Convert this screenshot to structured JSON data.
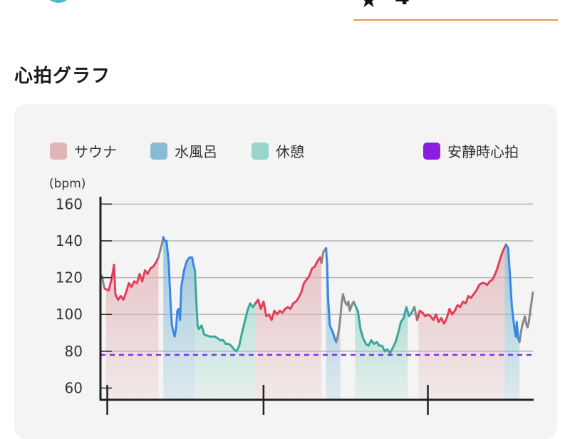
{
  "header": {
    "tab_icon": "sauna-icon",
    "star_icon": "★",
    "count": "4"
  },
  "section_title": "心拍グラフ",
  "legend": {
    "sauna": "サウナ",
    "cold_bath": "水風呂",
    "rest": "休憩",
    "resting_hr": "安静時心拍"
  },
  "colors": {
    "sauna_swatch": "#e3b4b6",
    "cold_swatch": "#86bcd6",
    "rest_swatch": "#98d6ca",
    "resting_swatch": "#8a1ee0",
    "sauna_line": "#e0405a",
    "cold_line": "#3a86e8",
    "rest_line": "#3aa79a",
    "other_line": "#888888",
    "resting_line": "#8a2be2",
    "accent": "#e8964a"
  },
  "chart_data": {
    "type": "line",
    "y_unit": "(bpm)",
    "ylim": [
      54,
      164
    ],
    "y_ticks": [
      60,
      80,
      100,
      120,
      140,
      160
    ],
    "grid": true,
    "resting_hr": 78,
    "series": [
      {
        "kind": "other",
        "values": [
          [
            0,
            121
          ],
          [
            0.8,
            115
          ],
          [
            1.1,
            114
          ]
        ]
      },
      {
        "kind": "sauna",
        "values": [
          [
            1.1,
            114
          ],
          [
            2.5,
            113
          ],
          [
            3.7,
            120
          ],
          [
            4.5,
            127
          ],
          [
            5,
            111
          ],
          [
            6,
            108
          ],
          [
            7,
            110
          ],
          [
            8,
            108
          ],
          [
            9,
            112
          ],
          [
            10,
            117
          ],
          [
            11,
            115
          ],
          [
            12,
            118
          ],
          [
            13,
            117
          ],
          [
            14,
            122
          ],
          [
            15,
            118
          ],
          [
            16,
            124
          ],
          [
            17,
            122
          ],
          [
            18,
            125
          ],
          [
            19,
            126
          ],
          [
            20,
            128
          ],
          [
            21,
            131
          ]
        ]
      },
      {
        "kind": "other",
        "values": [
          [
            21,
            131
          ],
          [
            22.4,
            139
          ],
          [
            22.8,
            142
          ]
        ]
      },
      {
        "kind": "cold",
        "values": [
          [
            22.8,
            142
          ],
          [
            23.3,
            140
          ],
          [
            24,
            140
          ],
          [
            24.8,
            128
          ],
          [
            25.5,
            106
          ],
          [
            26,
            94
          ],
          [
            26.5,
            91
          ],
          [
            27,
            88
          ],
          [
            27.5,
            92
          ],
          [
            28,
            102
          ],
          [
            28.5,
            103
          ],
          [
            29,
            97
          ],
          [
            29.5,
            115
          ],
          [
            30.5,
            124
          ],
          [
            31.5,
            129
          ],
          [
            32.5,
            131
          ],
          [
            33.5,
            131
          ],
          [
            34,
            127
          ],
          [
            34.5,
            124
          ]
        ]
      },
      {
        "kind": "rest",
        "values": [
          [
            34.5,
            124
          ],
          [
            35.5,
            94
          ],
          [
            36,
            92
          ],
          [
            37,
            94
          ],
          [
            38,
            89
          ],
          [
            40,
            88
          ],
          [
            42,
            88
          ],
          [
            44,
            86
          ],
          [
            45,
            86
          ],
          [
            46,
            84
          ],
          [
            47,
            84
          ],
          [
            48,
            83
          ],
          [
            49,
            81
          ],
          [
            50,
            80
          ],
          [
            51,
            83
          ],
          [
            52,
            90
          ],
          [
            53,
            96
          ],
          [
            54,
            102
          ],
          [
            55,
            106
          ],
          [
            56,
            104
          ],
          [
            57,
            106
          ]
        ]
      },
      {
        "kind": "sauna",
        "values": [
          [
            57,
            106
          ],
          [
            58,
            108
          ],
          [
            59,
            103
          ],
          [
            60,
            107
          ],
          [
            61,
            99
          ],
          [
            62,
            100
          ],
          [
            63,
            97
          ],
          [
            64,
            102
          ],
          [
            65,
            100
          ],
          [
            66,
            102
          ],
          [
            67,
            101
          ],
          [
            68,
            103
          ],
          [
            69,
            104
          ],
          [
            70,
            103
          ],
          [
            71,
            106
          ],
          [
            72,
            107
          ],
          [
            73,
            109
          ],
          [
            74,
            112
          ],
          [
            75,
            117
          ],
          [
            76,
            119
          ],
          [
            77,
            121
          ],
          [
            78,
            125
          ],
          [
            79,
            126
          ],
          [
            80,
            129
          ],
          [
            81,
            131
          ],
          [
            81.5,
            128
          ]
        ]
      },
      {
        "kind": "other",
        "values": [
          [
            81.5,
            128
          ],
          [
            82.2,
            134
          ],
          [
            83.2,
            136
          ]
        ]
      },
      {
        "kind": "cold",
        "values": [
          [
            83.2,
            136
          ],
          [
            83.6,
            127
          ],
          [
            84,
            108
          ],
          [
            84.6,
            94
          ],
          [
            85.2,
            92
          ],
          [
            85.8,
            90
          ],
          [
            86.4,
            87
          ],
          [
            87,
            85
          ]
        ]
      },
      {
        "kind": "other",
        "values": [
          [
            87,
            85
          ],
          [
            87.5,
            88
          ],
          [
            88,
            92
          ],
          [
            88.5,
            98
          ],
          [
            89,
            106
          ],
          [
            89.5,
            111
          ],
          [
            90,
            108
          ],
          [
            90.5,
            106
          ],
          [
            91,
            105
          ],
          [
            91.5,
            107
          ],
          [
            92,
            102
          ],
          [
            92.5,
            104
          ],
          [
            93,
            106
          ],
          [
            93.5,
            107
          ],
          [
            94,
            105
          ]
        ]
      },
      {
        "kind": "rest",
        "values": [
          [
            94,
            105
          ],
          [
            95,
            102
          ],
          [
            96,
            92
          ],
          [
            97,
            87
          ],
          [
            98,
            84
          ],
          [
            99,
            83
          ],
          [
            100,
            86
          ],
          [
            101,
            84
          ],
          [
            102,
            85
          ],
          [
            103,
            83
          ],
          [
            104,
            83
          ],
          [
            105,
            80
          ],
          [
            106,
            81
          ],
          [
            107,
            79
          ],
          [
            108,
            82
          ],
          [
            109,
            85
          ],
          [
            110,
            90
          ],
          [
            111,
            96
          ],
          [
            112,
            98
          ],
          [
            113,
            104
          ],
          [
            114,
            99
          ],
          [
            115,
            101
          ],
          [
            116,
            104
          ]
        ]
      },
      {
        "kind": "other",
        "values": [
          [
            116,
            104
          ],
          [
            117,
            97
          ]
        ]
      },
      {
        "kind": "sauna",
        "values": [
          [
            117,
            97
          ],
          [
            118,
            102
          ],
          [
            119,
            101
          ],
          [
            120,
            99
          ],
          [
            121,
            100
          ],
          [
            122,
            99
          ],
          [
            123,
            97
          ],
          [
            124,
            100
          ],
          [
            125,
            96
          ],
          [
            126,
            98
          ],
          [
            127,
            95
          ],
          [
            128,
            98
          ],
          [
            129,
            103
          ],
          [
            130,
            100
          ],
          [
            131,
            102
          ],
          [
            132,
            105
          ],
          [
            133,
            104
          ],
          [
            134,
            107
          ],
          [
            135,
            106
          ],
          [
            136,
            110
          ],
          [
            137,
            109
          ],
          [
            138,
            111
          ],
          [
            139,
            113
          ],
          [
            140,
            116
          ],
          [
            141,
            117
          ],
          [
            142,
            117
          ],
          [
            143,
            116
          ],
          [
            144,
            118
          ],
          [
            145,
            119
          ],
          [
            146,
            122
          ],
          [
            147,
            126
          ],
          [
            148,
            131
          ],
          [
            149,
            135
          ],
          [
            150,
            138
          ]
        ]
      },
      {
        "kind": "cold",
        "values": [
          [
            150,
            138
          ],
          [
            150.8,
            136
          ],
          [
            151.5,
            120
          ],
          [
            152.2,
            104
          ],
          [
            153,
            94
          ],
          [
            153.6,
            88
          ],
          [
            154,
            96
          ],
          [
            154.5,
            87
          ],
          [
            155,
            85
          ]
        ]
      },
      {
        "kind": "other",
        "values": [
          [
            155,
            85
          ],
          [
            155.5,
            90
          ],
          [
            156,
            94
          ],
          [
            157,
            99
          ],
          [
            157.5,
            95
          ],
          [
            158,
            93
          ],
          [
            158.5,
            96
          ],
          [
            159,
            102
          ],
          [
            160,
            112
          ]
        ]
      }
    ],
    "bands": [
      {
        "kind": "sauna",
        "start": 1.5,
        "end": 21
      },
      {
        "kind": "cold",
        "start": 22.8,
        "end": 34.5
      },
      {
        "kind": "rest",
        "start": 34.5,
        "end": 57
      },
      {
        "kind": "sauna",
        "start": 57,
        "end": 81.5
      },
      {
        "kind": "cold",
        "start": 83.2,
        "end": 88.5
      },
      {
        "kind": "rest",
        "start": 94,
        "end": 113.5
      },
      {
        "kind": "sauna",
        "start": 117.5,
        "end": 149.5
      },
      {
        "kind": "cold",
        "start": 149.5,
        "end": 155
      }
    ],
    "xlim": [
      0,
      160
    ],
    "x_major_ticks": [
      2,
      60,
      121
    ]
  }
}
